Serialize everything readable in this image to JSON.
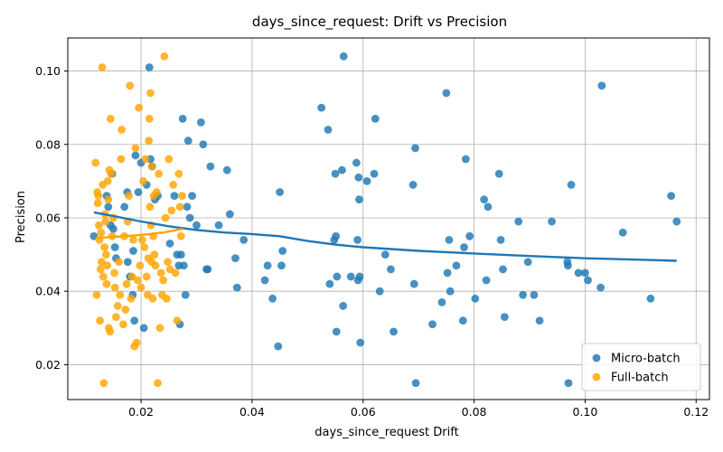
{
  "chart_data": {
    "type": "scatter",
    "title": "days_since_request: Drift vs Precision",
    "xlabel": "days_since_request Drift",
    "ylabel": "Precision",
    "xlim": [
      0.0068,
      0.1224
    ],
    "ylim": [
      0.0105,
      0.109
    ],
    "xticks": [
      0.02,
      0.04,
      0.06,
      0.08,
      0.1,
      0.12
    ],
    "xtick_labels": [
      "0.02",
      "0.04",
      "0.06",
      "0.08",
      "0.10",
      "0.12"
    ],
    "yticks": [
      0.02,
      0.04,
      0.06,
      0.08,
      0.1
    ],
    "ytick_labels": [
      "0.02",
      "0.04",
      "0.06",
      "0.08",
      "0.10"
    ],
    "grid": true,
    "legend_position": "bottom-right",
    "series": [
      {
        "name": "Micro-batch",
        "color": "#1f77b4",
        "points": [
          [
            0.0115,
            0.055
          ],
          [
            0.0138,
            0.066
          ],
          [
            0.0141,
            0.063
          ],
          [
            0.0145,
            0.058
          ],
          [
            0.0148,
            0.072
          ],
          [
            0.015,
            0.057
          ],
          [
            0.0153,
            0.052
          ],
          [
            0.0155,
            0.049
          ],
          [
            0.017,
            0.063
          ],
          [
            0.0175,
            0.067
          ],
          [
            0.0176,
            0.048
          ],
          [
            0.018,
            0.044
          ],
          [
            0.0185,
            0.039
          ],
          [
            0.0186,
            0.051
          ],
          [
            0.0188,
            0.032
          ],
          [
            0.019,
            0.077
          ],
          [
            0.0195,
            0.067
          ],
          [
            0.02,
            0.075
          ],
          [
            0.0205,
            0.03
          ],
          [
            0.021,
            0.069
          ],
          [
            0.0215,
            0.101
          ],
          [
            0.0217,
            0.076
          ],
          [
            0.022,
            0.074
          ],
          [
            0.0225,
            0.065
          ],
          [
            0.023,
            0.066
          ],
          [
            0.0252,
            0.053
          ],
          [
            0.026,
            0.066
          ],
          [
            0.0265,
            0.05
          ],
          [
            0.0268,
            0.047
          ],
          [
            0.027,
            0.031
          ],
          [
            0.0272,
            0.05
          ],
          [
            0.0275,
            0.087
          ],
          [
            0.0277,
            0.047
          ],
          [
            0.028,
            0.039
          ],
          [
            0.0283,
            0.063
          ],
          [
            0.0285,
            0.081
          ],
          [
            0.0288,
            0.06
          ],
          [
            0.0292,
            0.066
          ],
          [
            0.03,
            0.058
          ],
          [
            0.0308,
            0.086
          ],
          [
            0.0312,
            0.08
          ],
          [
            0.0318,
            0.046
          ],
          [
            0.032,
            0.046
          ],
          [
            0.0325,
            0.074
          ],
          [
            0.034,
            0.058
          ],
          [
            0.0355,
            0.073
          ],
          [
            0.036,
            0.061
          ],
          [
            0.037,
            0.049
          ],
          [
            0.0373,
            0.041
          ],
          [
            0.0385,
            0.054
          ],
          [
            0.0423,
            0.043
          ],
          [
            0.0428,
            0.047
          ],
          [
            0.0437,
            0.038
          ],
          [
            0.0447,
            0.025
          ],
          [
            0.045,
            0.067
          ],
          [
            0.0453,
            0.047
          ],
          [
            0.0455,
            0.051
          ],
          [
            0.0525,
            0.09
          ],
          [
            0.0537,
            0.084
          ],
          [
            0.054,
            0.042
          ],
          [
            0.0548,
            0.054
          ],
          [
            0.055,
            0.072
          ],
          [
            0.0551,
            0.055
          ],
          [
            0.0552,
            0.029
          ],
          [
            0.0553,
            0.044
          ],
          [
            0.0562,
            0.073
          ],
          [
            0.0564,
            0.036
          ],
          [
            0.0565,
            0.104
          ],
          [
            0.0578,
            0.044
          ],
          [
            0.0588,
            0.075
          ],
          [
            0.059,
            0.054
          ],
          [
            0.0591,
            0.043
          ],
          [
            0.0592,
            0.071
          ],
          [
            0.0593,
            0.065
          ],
          [
            0.0594,
            0.044
          ],
          [
            0.0595,
            0.026
          ],
          [
            0.0607,
            0.07
          ],
          [
            0.062,
            0.072
          ],
          [
            0.0622,
            0.087
          ],
          [
            0.063,
            0.04
          ],
          [
            0.064,
            0.05
          ],
          [
            0.065,
            0.046
          ],
          [
            0.0655,
            0.029
          ],
          [
            0.069,
            0.069
          ],
          [
            0.0692,
            0.042
          ],
          [
            0.0694,
            0.079
          ],
          [
            0.0695,
            0.015
          ],
          [
            0.0725,
            0.031
          ],
          [
            0.0742,
            0.037
          ],
          [
            0.075,
            0.094
          ],
          [
            0.0752,
            0.045
          ],
          [
            0.0755,
            0.054
          ],
          [
            0.0757,
            0.04
          ],
          [
            0.0768,
            0.047
          ],
          [
            0.078,
            0.032
          ],
          [
            0.0782,
            0.052
          ],
          [
            0.0785,
            0.076
          ],
          [
            0.0792,
            0.055
          ],
          [
            0.0802,
            0.038
          ],
          [
            0.0818,
            0.065
          ],
          [
            0.0822,
            0.043
          ],
          [
            0.0825,
            0.063
          ],
          [
            0.0845,
            0.072
          ],
          [
            0.0848,
            0.054
          ],
          [
            0.0852,
            0.046
          ],
          [
            0.0855,
            0.033
          ],
          [
            0.088,
            0.059
          ],
          [
            0.0888,
            0.039
          ],
          [
            0.0897,
            0.048
          ],
          [
            0.0908,
            0.039
          ],
          [
            0.0918,
            0.032
          ],
          [
            0.094,
            0.059
          ],
          [
            0.0968,
            0.048
          ],
          [
            0.0969,
            0.047
          ],
          [
            0.097,
            0.015
          ],
          [
            0.0975,
            0.069
          ],
          [
            0.0988,
            0.045
          ],
          [
            0.1,
            0.045
          ],
          [
            0.1005,
            0.043
          ],
          [
            0.1028,
            0.041
          ],
          [
            0.103,
            0.096
          ],
          [
            0.1068,
            0.056
          ],
          [
            0.1118,
            0.038
          ],
          [
            0.1155,
            0.066
          ],
          [
            0.1165,
            0.059
          ]
        ],
        "trend": [
          [
            0.0115,
            0.0615
          ],
          [
            0.015,
            0.0605
          ],
          [
            0.02,
            0.059
          ],
          [
            0.025,
            0.0577
          ],
          [
            0.03,
            0.0567
          ],
          [
            0.035,
            0.056
          ],
          [
            0.04,
            0.0556
          ],
          [
            0.045,
            0.055
          ],
          [
            0.05,
            0.0537
          ],
          [
            0.055,
            0.0527
          ],
          [
            0.06,
            0.052
          ],
          [
            0.07,
            0.051
          ],
          [
            0.08,
            0.0503
          ],
          [
            0.09,
            0.0496
          ],
          [
            0.1,
            0.049
          ],
          [
            0.11,
            0.0486
          ],
          [
            0.1165,
            0.0483
          ]
        ]
      },
      {
        "name": "Full-batch",
        "color": "#ffa500",
        "points": [
          [
            0.0118,
            0.075
          ],
          [
            0.012,
            0.039
          ],
          [
            0.0121,
            0.067
          ],
          [
            0.0122,
            0.064
          ],
          [
            0.0123,
            0.066
          ],
          [
            0.0124,
            0.058
          ],
          [
            0.0125,
            0.054
          ],
          [
            0.0126,
            0.032
          ],
          [
            0.0127,
            0.046
          ],
          [
            0.0128,
            0.056
          ],
          [
            0.0129,
            0.048
          ],
          [
            0.013,
            0.101
          ],
          [
            0.0131,
            0.069
          ],
          [
            0.0132,
            0.044
          ],
          [
            0.0133,
            0.015
          ],
          [
            0.0134,
            0.052
          ],
          [
            0.0135,
            0.061
          ],
          [
            0.0136,
            0.059
          ],
          [
            0.0137,
            0.05
          ],
          [
            0.0138,
            0.042
          ],
          [
            0.0139,
            0.047
          ],
          [
            0.014,
            0.07
          ],
          [
            0.0141,
            0.065
          ],
          [
            0.0142,
            0.03
          ],
          [
            0.0143,
            0.073
          ],
          [
            0.0144,
            0.029
          ],
          [
            0.0145,
            0.087
          ],
          [
            0.0146,
            0.072
          ],
          [
            0.0148,
            0.055
          ],
          [
            0.015,
            0.06
          ],
          [
            0.0152,
            0.045
          ],
          [
            0.0153,
            0.041
          ],
          [
            0.0155,
            0.033
          ],
          [
            0.0158,
            0.036
          ],
          [
            0.016,
            0.048
          ],
          [
            0.0162,
            0.039
          ],
          [
            0.0164,
            0.076
          ],
          [
            0.0165,
            0.084
          ],
          [
            0.0168,
            0.031
          ],
          [
            0.017,
            0.055
          ],
          [
            0.0172,
            0.035
          ],
          [
            0.0174,
            0.042
          ],
          [
            0.0176,
            0.059
          ],
          [
            0.0178,
            0.066
          ],
          [
            0.018,
            0.096
          ],
          [
            0.0182,
            0.038
          ],
          [
            0.0184,
            0.044
          ],
          [
            0.0186,
            0.054
          ],
          [
            0.0188,
            0.025
          ],
          [
            0.019,
            0.079
          ],
          [
            0.0192,
            0.026
          ],
          [
            0.0194,
            0.043
          ],
          [
            0.0196,
            0.09
          ],
          [
            0.0198,
            0.047
          ],
          [
            0.02,
            0.041
          ],
          [
            0.0202,
            0.054
          ],
          [
            0.0204,
            0.07
          ],
          [
            0.0206,
            0.052
          ],
          [
            0.0208,
            0.076
          ],
          [
            0.021,
            0.044
          ],
          [
            0.0212,
            0.039
          ],
          [
            0.0213,
            0.049
          ],
          [
            0.0214,
            0.081
          ],
          [
            0.0215,
            0.087
          ],
          [
            0.0216,
            0.063
          ],
          [
            0.0217,
            0.094
          ],
          [
            0.0218,
            0.058
          ],
          [
            0.0219,
            0.048
          ],
          [
            0.022,
            0.074
          ],
          [
            0.0221,
            0.038
          ],
          [
            0.0222,
            0.055
          ],
          [
            0.0223,
            0.066
          ],
          [
            0.0224,
            0.05
          ],
          [
            0.0226,
            0.047
          ],
          [
            0.0228,
            0.067
          ],
          [
            0.023,
            0.015
          ],
          [
            0.0232,
            0.072
          ],
          [
            0.0234,
            0.03
          ],
          [
            0.0236,
            0.045
          ],
          [
            0.0238,
            0.039
          ],
          [
            0.024,
            0.043
          ],
          [
            0.0242,
            0.104
          ],
          [
            0.0244,
            0.06
          ],
          [
            0.0246,
            0.038
          ],
          [
            0.0248,
            0.048
          ],
          [
            0.025,
            0.076
          ],
          [
            0.0252,
            0.046
          ],
          [
            0.0255,
            0.062
          ],
          [
            0.0258,
            0.069
          ],
          [
            0.0262,
            0.045
          ],
          [
            0.0265,
            0.032
          ],
          [
            0.0268,
            0.072
          ],
          [
            0.027,
            0.063
          ],
          [
            0.0272,
            0.055
          ],
          [
            0.0274,
            0.066
          ]
        ],
        "trend": [
          [
            0.0118,
            0.0545
          ],
          [
            0.015,
            0.0548
          ],
          [
            0.018,
            0.0551
          ],
          [
            0.021,
            0.0555
          ],
          [
            0.024,
            0.056
          ],
          [
            0.0275,
            0.057
          ]
        ]
      }
    ]
  }
}
